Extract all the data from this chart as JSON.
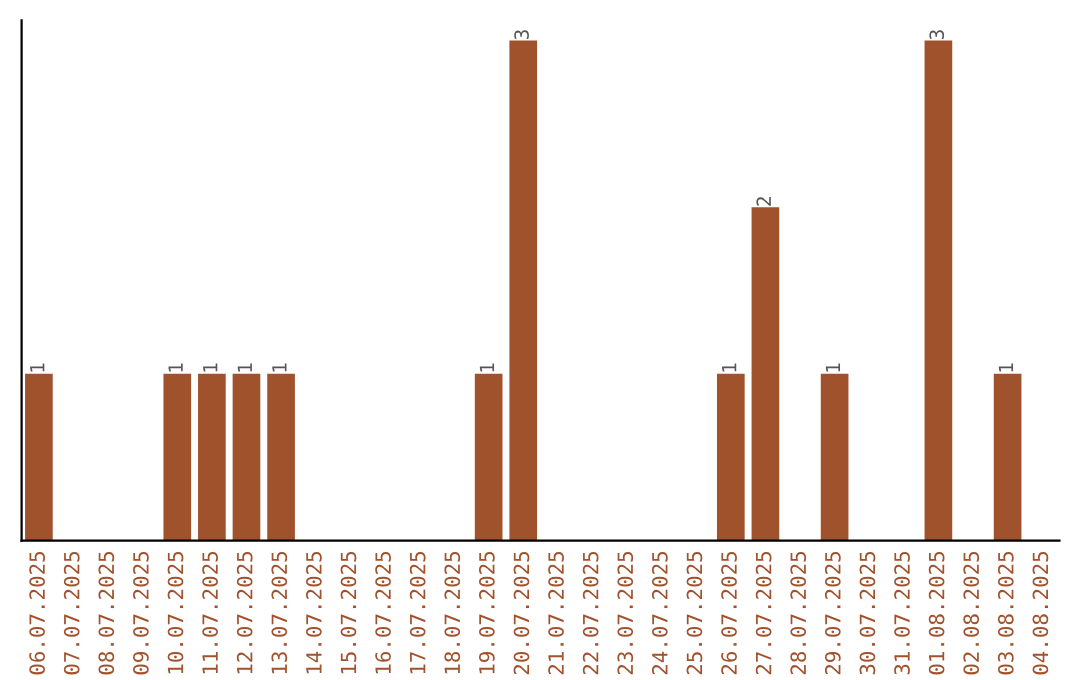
{
  "chart_data": {
    "type": "bar",
    "categories": [
      "06.07.2025",
      "07.07.2025",
      "08.07.2025",
      "09.07.2025",
      "10.07.2025",
      "11.07.2025",
      "12.07.2025",
      "13.07.2025",
      "14.07.2025",
      "15.07.2025",
      "16.07.2025",
      "17.07.2025",
      "18.07.2025",
      "19.07.2025",
      "20.07.2025",
      "21.07.2025",
      "22.07.2025",
      "23.07.2025",
      "24.07.2025",
      "25.07.2025",
      "26.07.2025",
      "27.07.2025",
      "28.07.2025",
      "29.07.2025",
      "30.07.2025",
      "31.07.2025",
      "01.08.2025",
      "02.08.2025",
      "03.08.2025",
      "04.08.2025"
    ],
    "values": [
      1,
      0,
      0,
      0,
      1,
      1,
      1,
      1,
      0,
      0,
      0,
      0,
      0,
      1,
      3,
      0,
      0,
      0,
      0,
      0,
      1,
      2,
      0,
      1,
      0,
      0,
      3,
      0,
      1,
      0
    ],
    "color": "#a0522d",
    "value_labels": [
      "1",
      null,
      null,
      null,
      "1",
      "1",
      "1",
      "1",
      null,
      null,
      null,
      null,
      null,
      "1",
      "3",
      null,
      null,
      null,
      null,
      null,
      "1",
      "2",
      null,
      "1",
      null,
      null,
      "3",
      null,
      "1",
      null
    ],
    "grid": false,
    "legend": false,
    "tick_labels": "x"
  }
}
